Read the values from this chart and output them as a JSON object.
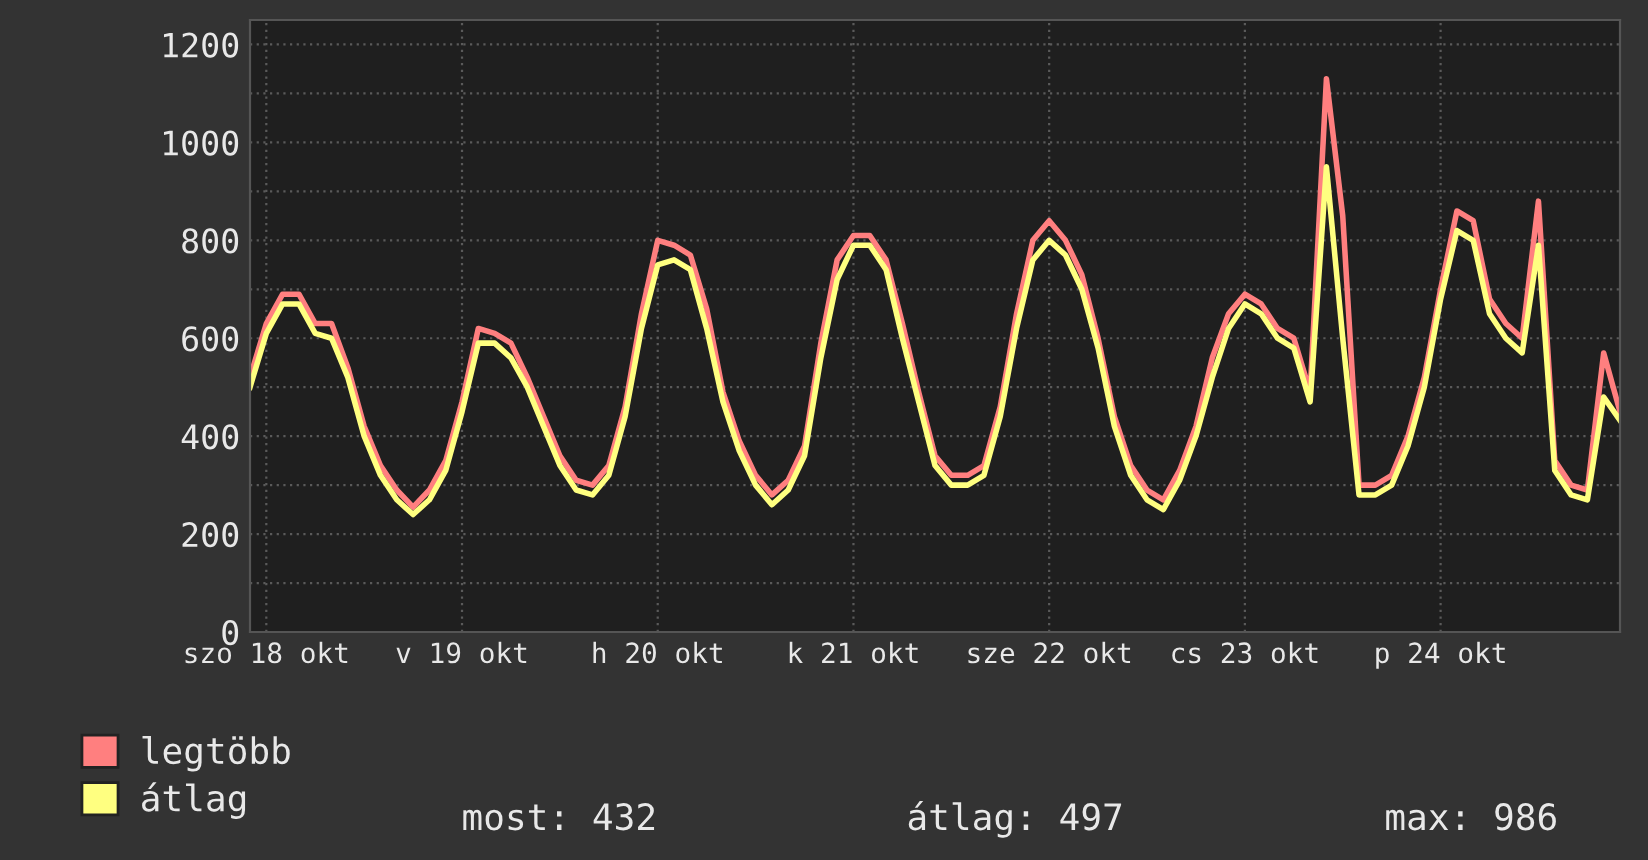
{
  "chart_data": {
    "type": "line",
    "categories": [
      null,
      "szo 18 okt",
      null,
      null,
      null,
      null,
      null,
      null,
      null,
      null,
      null,
      null,
      null,
      "v 19 okt",
      null,
      null,
      null,
      null,
      null,
      null,
      null,
      null,
      null,
      null,
      null,
      "h 20 okt",
      null,
      null,
      null,
      null,
      null,
      null,
      null,
      null,
      null,
      null,
      null,
      "k 21 okt",
      null,
      null,
      null,
      null,
      null,
      null,
      null,
      null,
      null,
      null,
      null,
      "sze 22 okt",
      null,
      null,
      null,
      null,
      null,
      null,
      null,
      null,
      null,
      null,
      null,
      "cs 23 okt",
      null,
      null,
      null,
      null,
      null,
      null,
      null,
      null,
      null,
      null,
      null,
      "p 24 okt",
      null,
      null,
      null,
      null,
      null,
      null,
      null,
      null,
      null,
      null,
      null
    ],
    "series": [
      {
        "name": "legtöbb",
        "color": "#ff7f7f",
        "values": [
          520,
          630,
          690,
          690,
          630,
          630,
          540,
          420,
          340,
          290,
          255,
          290,
          350,
          470,
          620,
          610,
          590,
          520,
          440,
          360,
          310,
          300,
          340,
          460,
          650,
          800,
          790,
          770,
          660,
          490,
          390,
          320,
          280,
          310,
          380,
          590,
          760,
          810,
          810,
          760,
          630,
          490,
          360,
          320,
          320,
          340,
          460,
          650,
          800,
          840,
          800,
          730,
          600,
          440,
          340,
          290,
          270,
          330,
          420,
          560,
          650,
          690,
          670,
          620,
          600,
          490,
          1130,
          850,
          300,
          300,
          320,
          400,
          520,
          700,
          860,
          840,
          680,
          630,
          600,
          880,
          350,
          300,
          290,
          570,
          450
        ]
      },
      {
        "name": "átlag",
        "color": "#ffff80",
        "values": [
          500,
          610,
          670,
          670,
          610,
          600,
          520,
          400,
          320,
          270,
          240,
          270,
          330,
          450,
          590,
          590,
          560,
          500,
          420,
          340,
          290,
          280,
          320,
          440,
          620,
          750,
          760,
          740,
          620,
          470,
          370,
          300,
          260,
          290,
          360,
          560,
          720,
          790,
          790,
          740,
          600,
          470,
          340,
          300,
          300,
          320,
          440,
          620,
          760,
          800,
          770,
          700,
          580,
          420,
          320,
          270,
          250,
          310,
          400,
          520,
          620,
          670,
          650,
          600,
          580,
          470,
          950,
          600,
          280,
          280,
          300,
          380,
          500,
          680,
          820,
          800,
          650,
          600,
          570,
          790,
          330,
          280,
          270,
          480,
          432
        ]
      }
    ],
    "ylim": [
      0,
      1250
    ],
    "yticks": [
      0,
      {
        "value": 100,
        "label": null
      },
      200,
      {
        "value": 300,
        "label": null
      },
      400,
      {
        "value": 500,
        "label": null
      },
      600,
      {
        "value": 700,
        "label": null
      },
      800,
      {
        "value": 900,
        "label": null
      },
      1000,
      {
        "value": 1100,
        "label": null
      },
      1200
    ],
    "grid": true,
    "legend": "bottom left",
    "annotations": [
      "most: 432",
      "átlag: 497",
      "max: 986"
    ]
  }
}
